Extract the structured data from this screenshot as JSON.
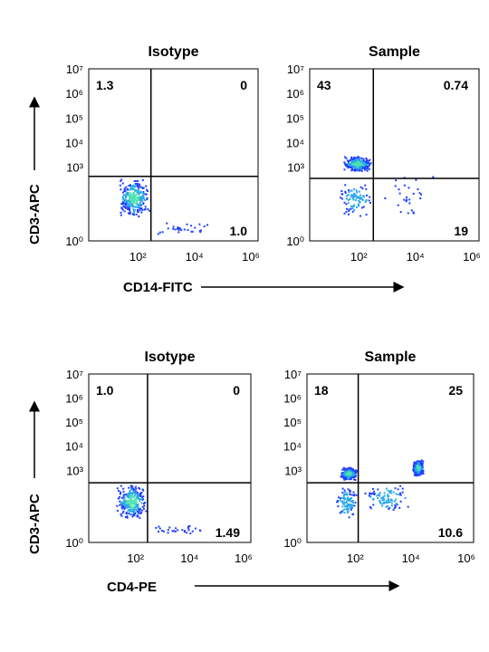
{
  "chart_data": [
    {
      "type": "scatter",
      "title": "Isotype",
      "x_ticks": [
        "10²",
        "10⁴",
        "10⁶"
      ],
      "y_ticks": [
        "10⁰",
        "10³",
        "10⁴",
        "10⁵",
        "10⁶",
        "10⁷"
      ],
      "xlim": [
        1,
        1000000
      ],
      "ylim": [
        1,
        10000000
      ],
      "gate": {
        "x": 160,
        "y": 420
      },
      "quadrant_values": {
        "upper_left": "1.3",
        "upper_right": "0",
        "lower_right": "1.0"
      },
      "populations": [
        {
          "name": "",
          "x_range": [
            10,
            140
          ],
          "y_range": [
            10,
            400
          ],
          "density": "high"
        },
        {
          "name": "",
          "x_range": [
            160,
            30000
          ],
          "y_range": [
            2,
            6
          ],
          "density": "low"
        }
      ]
    },
    {
      "type": "scatter",
      "title": "Sample",
      "x_ticks": [
        "10²",
        "10⁴",
        "10⁶"
      ],
      "y_ticks": [
        "10⁰",
        "10³",
        "10⁴",
        "10⁵",
        "10⁶",
        "10⁷"
      ],
      "xlim": [
        1,
        1000000
      ],
      "ylim": [
        1,
        10000000
      ],
      "gate": {
        "x": 180,
        "y": 350
      },
      "quadrant_values": {
        "upper_left": "43",
        "upper_right": "0.74",
        "lower_right": "19"
      },
      "populations": [
        {
          "name": "",
          "x_range": [
            15,
            150
          ],
          "y_range": [
            700,
            3000
          ],
          "density": "high"
        },
        {
          "name": "",
          "x_range": [
            10,
            150
          ],
          "y_range": [
            10,
            300
          ],
          "density": "medium"
        },
        {
          "name": "",
          "x_range": [
            200,
            25000
          ],
          "y_range": [
            5,
            600
          ],
          "density": "low"
        }
      ]
    },
    {
      "type": "scatter",
      "title": "Isotype",
      "x_ticks": [
        "10²",
        "10⁴",
        "10⁶"
      ],
      "y_ticks": [
        "10⁰",
        "10³",
        "10⁴",
        "10⁵",
        "10⁶",
        "10⁷"
      ],
      "xlim": [
        1,
        1000000
      ],
      "ylim": [
        1,
        10000000
      ],
      "gate": {
        "x": 150,
        "y": 300
      },
      "quadrant_values": {
        "upper_left": "1.0",
        "upper_right": "0",
        "lower_right": "1.49"
      },
      "populations": [
        {
          "name": "",
          "x_range": [
            10,
            140
          ],
          "y_range": [
            10,
            280
          ],
          "density": "high"
        },
        {
          "name": "",
          "x_range": [
            160,
            30000
          ],
          "y_range": [
            2,
            6
          ],
          "density": "low"
        }
      ]
    },
    {
      "type": "scatter",
      "title": "Sample",
      "x_ticks": [
        "10²",
        "10⁴",
        "10⁶"
      ],
      "y_ticks": [
        "10⁰",
        "10³",
        "10⁴",
        "10⁵",
        "10⁶",
        "10⁷"
      ],
      "xlim": [
        1,
        1000000
      ],
      "ylim": [
        1,
        10000000
      ],
      "gate": {
        "x": 70,
        "y": 300
      },
      "quadrant_values": {
        "upper_left": "18",
        "upper_right": "25",
        "lower_right": "10.6"
      },
      "populations": [
        {
          "name": "",
          "x_range": [
            15,
            60
          ],
          "y_range": [
            400,
            1500
          ],
          "density": "high"
        },
        {
          "name": "",
          "x_range": [
            6000,
            15000
          ],
          "y_range": [
            600,
            3000
          ],
          "density": "high"
        },
        {
          "name": "",
          "x_range": [
            100,
            5000
          ],
          "y_range": [
            20,
            280
          ],
          "density": "medium"
        },
        {
          "name": "",
          "x_range": [
            10,
            60
          ],
          "y_range": [
            10,
            250
          ],
          "density": "medium"
        }
      ]
    }
  ],
  "axes": {
    "top_y_label": "CD3-APC",
    "top_x_label": "CD14-FITC",
    "bottom_y_label": "CD3-APC",
    "bottom_x_label": "CD4-PE"
  },
  "colors": {
    "sparse": "#1f3fff",
    "medium": "#2aa8e8",
    "dense": "#4fe3b0",
    "gate": "#000000"
  }
}
